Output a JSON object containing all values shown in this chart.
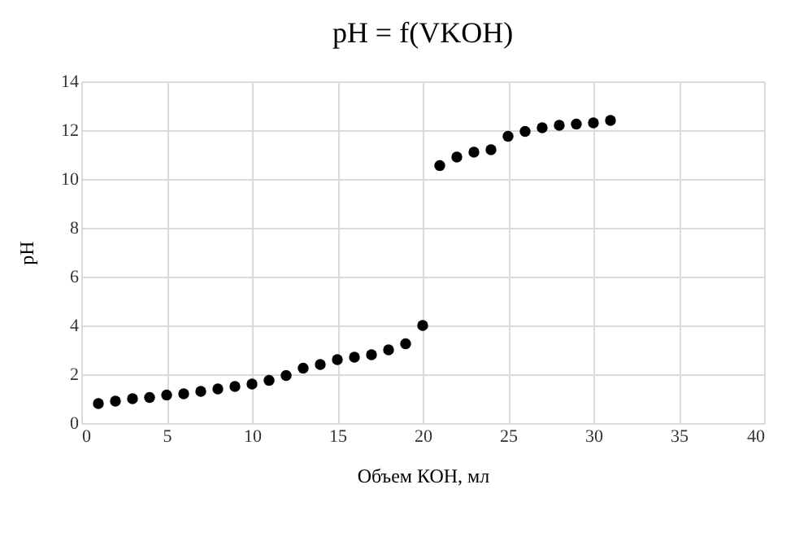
{
  "chart_data": {
    "type": "scatter",
    "title": "pH = f(VKOH)",
    "xlabel": "Объем КОН, мл",
    "ylabel": "pH",
    "x": [
      1,
      2,
      3,
      4,
      5,
      6,
      7,
      8,
      9,
      10,
      11,
      12,
      13,
      14,
      15,
      16,
      17,
      18,
      19,
      20,
      21,
      22,
      23,
      24,
      25,
      26,
      27,
      28,
      29,
      30,
      31
    ],
    "series": [
      {
        "color": "#000000",
        "values": [
          0.8,
          0.9,
          1.0,
          1.05,
          1.15,
          1.2,
          1.3,
          1.4,
          1.5,
          1.6,
          1.75,
          1.95,
          2.25,
          2.4,
          2.6,
          2.7,
          2.8,
          3.0,
          3.25,
          4.0,
          10.55,
          10.9,
          11.1,
          11.2,
          11.75,
          11.95,
          12.1,
          12.2,
          12.25,
          12.3,
          12.4
        ]
      }
    ],
    "xlim": [
      0,
      40
    ],
    "xticks": [
      0,
      5,
      10,
      15,
      20,
      25,
      30,
      35,
      40
    ],
    "ylim": [
      0,
      14
    ],
    "yticks": [
      0,
      2,
      4,
      6,
      8,
      10,
      12,
      14
    ],
    "grid": true,
    "marker": "circle",
    "legend": false
  }
}
